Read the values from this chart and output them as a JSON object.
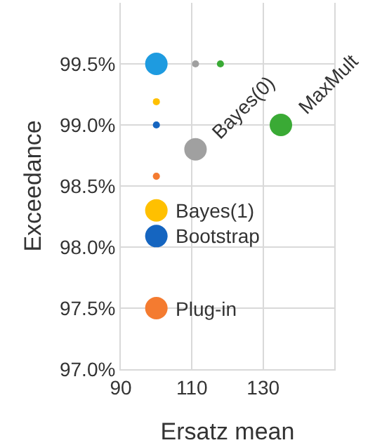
{
  "chart_data": {
    "type": "bubble",
    "xlabel": "Ersatz mean",
    "ylabel": "Exceedance",
    "xlim": [
      90,
      150
    ],
    "xticks": [
      90,
      110,
      130
    ],
    "ylim": [
      97,
      100
    ],
    "yticks": [
      {
        "value": 97,
        "label": "97.0%"
      },
      {
        "value": 97.5,
        "label": "97.5%"
      },
      {
        "value": 98,
        "label": "98.0%"
      },
      {
        "value": 98.5,
        "label": "98.5%"
      },
      {
        "value": 99,
        "label": "99.0%"
      },
      {
        "value": 99.5,
        "label": "99.5%"
      }
    ],
    "grid": true,
    "legend": false,
    "series": [
      {
        "color": "#1e9be0",
        "x": [
          100
        ],
        "values": [
          99.5
        ],
        "sizes": [
          1
        ]
      },
      {
        "name": "Bayes(0)",
        "color": "#a0a0a0",
        "x": [
          111,
          111
        ],
        "values": [
          99.5,
          98.8
        ],
        "sizes": [
          0.1,
          1
        ]
      },
      {
        "name": "MaxMult",
        "color": "#3aaa35",
        "x": [
          118,
          135
        ],
        "values": [
          99.5,
          99.0
        ],
        "sizes": [
          0.1,
          1
        ]
      },
      {
        "name": "Bayes(1)",
        "color": "#ffc000",
        "x": [
          100,
          100
        ],
        "values": [
          99.19,
          98.3
        ],
        "sizes": [
          0.1,
          1
        ]
      },
      {
        "name": "Bootstrap",
        "color": "#1565c0",
        "x": [
          100,
          100
        ],
        "values": [
          99.0,
          98.09
        ],
        "sizes": [
          0.1,
          1
        ]
      },
      {
        "name": "Plug-in",
        "color": "#f47b30",
        "x": [
          100,
          100
        ],
        "values": [
          98.58,
          97.5
        ],
        "sizes": [
          0.1,
          1
        ]
      }
    ]
  }
}
